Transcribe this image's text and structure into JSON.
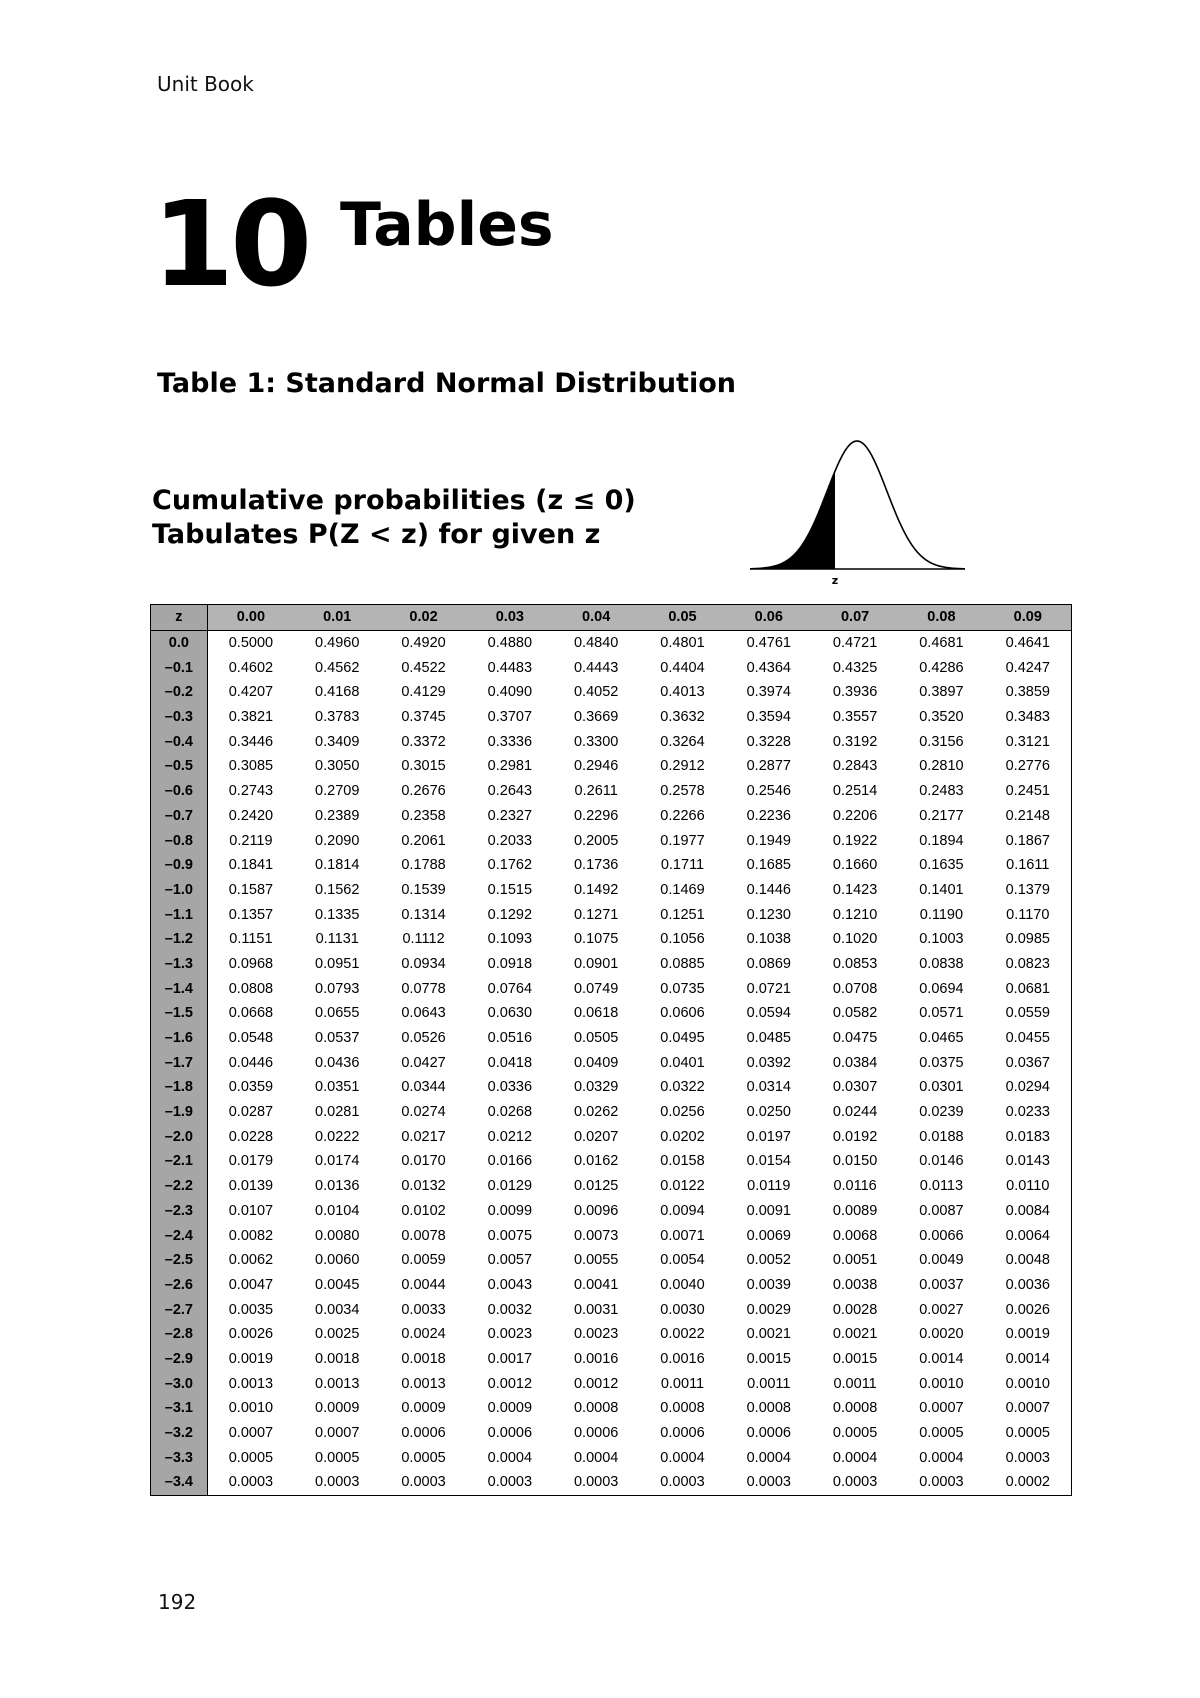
{
  "header": {
    "running_title": "Unit Book"
  },
  "chapter": {
    "number": "10",
    "title": "Tables"
  },
  "table_heading": "Table 1: Standard Normal Distribution",
  "subheading": {
    "line1": "Cumulative probabilities (z ≤ 0)",
    "line2": "Tabulates P(Z < z) for given z"
  },
  "curve": {
    "label": "z"
  },
  "table": {
    "z_header": "z",
    "columns": [
      "0.00",
      "0.01",
      "0.02",
      "0.03",
      "0.04",
      "0.05",
      "0.06",
      "0.07",
      "0.08",
      "0.09"
    ],
    "rows": [
      {
        "z": "0.0",
        "values": [
          "0.5000",
          "0.4960",
          "0.4920",
          "0.4880",
          "0.4840",
          "0.4801",
          "0.4761",
          "0.4721",
          "0.4681",
          "0.4641"
        ]
      },
      {
        "z": "–0.1",
        "values": [
          "0.4602",
          "0.4562",
          "0.4522",
          "0.4483",
          "0.4443",
          "0.4404",
          "0.4364",
          "0.4325",
          "0.4286",
          "0.4247"
        ]
      },
      {
        "z": "–0.2",
        "values": [
          "0.4207",
          "0.4168",
          "0.4129",
          "0.4090",
          "0.4052",
          "0.4013",
          "0.3974",
          "0.3936",
          "0.3897",
          "0.3859"
        ]
      },
      {
        "z": "–0.3",
        "values": [
          "0.3821",
          "0.3783",
          "0.3745",
          "0.3707",
          "0.3669",
          "0.3632",
          "0.3594",
          "0.3557",
          "0.3520",
          "0.3483"
        ]
      },
      {
        "z": "–0.4",
        "values": [
          "0.3446",
          "0.3409",
          "0.3372",
          "0.3336",
          "0.3300",
          "0.3264",
          "0.3228",
          "0.3192",
          "0.3156",
          "0.3121"
        ]
      },
      {
        "z": "–0.5",
        "values": [
          "0.3085",
          "0.3050",
          "0.3015",
          "0.2981",
          "0.2946",
          "0.2912",
          "0.2877",
          "0.2843",
          "0.2810",
          "0.2776"
        ]
      },
      {
        "z": "–0.6",
        "values": [
          "0.2743",
          "0.2709",
          "0.2676",
          "0.2643",
          "0.2611",
          "0.2578",
          "0.2546",
          "0.2514",
          "0.2483",
          "0.2451"
        ]
      },
      {
        "z": "–0.7",
        "values": [
          "0.2420",
          "0.2389",
          "0.2358",
          "0.2327",
          "0.2296",
          "0.2266",
          "0.2236",
          "0.2206",
          "0.2177",
          "0.2148"
        ]
      },
      {
        "z": "–0.8",
        "values": [
          "0.2119",
          "0.2090",
          "0.2061",
          "0.2033",
          "0.2005",
          "0.1977",
          "0.1949",
          "0.1922",
          "0.1894",
          "0.1867"
        ]
      },
      {
        "z": "–0.9",
        "values": [
          "0.1841",
          "0.1814",
          "0.1788",
          "0.1762",
          "0.1736",
          "0.1711",
          "0.1685",
          "0.1660",
          "0.1635",
          "0.1611"
        ]
      },
      {
        "z": "–1.0",
        "values": [
          "0.1587",
          "0.1562",
          "0.1539",
          "0.1515",
          "0.1492",
          "0.1469",
          "0.1446",
          "0.1423",
          "0.1401",
          "0.1379"
        ]
      },
      {
        "z": "–1.1",
        "values": [
          "0.1357",
          "0.1335",
          "0.1314",
          "0.1292",
          "0.1271",
          "0.1251",
          "0.1230",
          "0.1210",
          "0.1190",
          "0.1170"
        ]
      },
      {
        "z": "–1.2",
        "values": [
          "0.1151",
          "0.1131",
          "0.1112",
          "0.1093",
          "0.1075",
          "0.1056",
          "0.1038",
          "0.1020",
          "0.1003",
          "0.0985"
        ]
      },
      {
        "z": "–1.3",
        "values": [
          "0.0968",
          "0.0951",
          "0.0934",
          "0.0918",
          "0.0901",
          "0.0885",
          "0.0869",
          "0.0853",
          "0.0838",
          "0.0823"
        ]
      },
      {
        "z": "–1.4",
        "values": [
          "0.0808",
          "0.0793",
          "0.0778",
          "0.0764",
          "0.0749",
          "0.0735",
          "0.0721",
          "0.0708",
          "0.0694",
          "0.0681"
        ]
      },
      {
        "z": "–1.5",
        "values": [
          "0.0668",
          "0.0655",
          "0.0643",
          "0.0630",
          "0.0618",
          "0.0606",
          "0.0594",
          "0.0582",
          "0.0571",
          "0.0559"
        ]
      },
      {
        "z": "–1.6",
        "values": [
          "0.0548",
          "0.0537",
          "0.0526",
          "0.0516",
          "0.0505",
          "0.0495",
          "0.0485",
          "0.0475",
          "0.0465",
          "0.0455"
        ]
      },
      {
        "z": "–1.7",
        "values": [
          "0.0446",
          "0.0436",
          "0.0427",
          "0.0418",
          "0.0409",
          "0.0401",
          "0.0392",
          "0.0384",
          "0.0375",
          "0.0367"
        ]
      },
      {
        "z": "–1.8",
        "values": [
          "0.0359",
          "0.0351",
          "0.0344",
          "0.0336",
          "0.0329",
          "0.0322",
          "0.0314",
          "0.0307",
          "0.0301",
          "0.0294"
        ]
      },
      {
        "z": "–1.9",
        "values": [
          "0.0287",
          "0.0281",
          "0.0274",
          "0.0268",
          "0.0262",
          "0.0256",
          "0.0250",
          "0.0244",
          "0.0239",
          "0.0233"
        ]
      },
      {
        "z": "–2.0",
        "values": [
          "0.0228",
          "0.0222",
          "0.0217",
          "0.0212",
          "0.0207",
          "0.0202",
          "0.0197",
          "0.0192",
          "0.0188",
          "0.0183"
        ]
      },
      {
        "z": "–2.1",
        "values": [
          "0.0179",
          "0.0174",
          "0.0170",
          "0.0166",
          "0.0162",
          "0.0158",
          "0.0154",
          "0.0150",
          "0.0146",
          "0.0143"
        ]
      },
      {
        "z": "–2.2",
        "values": [
          "0.0139",
          "0.0136",
          "0.0132",
          "0.0129",
          "0.0125",
          "0.0122",
          "0.0119",
          "0.0116",
          "0.0113",
          "0.0110"
        ]
      },
      {
        "z": "–2.3",
        "values": [
          "0.0107",
          "0.0104",
          "0.0102",
          "0.0099",
          "0.0096",
          "0.0094",
          "0.0091",
          "0.0089",
          "0.0087",
          "0.0084"
        ]
      },
      {
        "z": "–2.4",
        "values": [
          "0.0082",
          "0.0080",
          "0.0078",
          "0.0075",
          "0.0073",
          "0.0071",
          "0.0069",
          "0.0068",
          "0.0066",
          "0.0064"
        ]
      },
      {
        "z": "–2.5",
        "values": [
          "0.0062",
          "0.0060",
          "0.0059",
          "0.0057",
          "0.0055",
          "0.0054",
          "0.0052",
          "0.0051",
          "0.0049",
          "0.0048"
        ]
      },
      {
        "z": "–2.6",
        "values": [
          "0.0047",
          "0.0045",
          "0.0044",
          "0.0043",
          "0.0041",
          "0.0040",
          "0.0039",
          "0.0038",
          "0.0037",
          "0.0036"
        ]
      },
      {
        "z": "–2.7",
        "values": [
          "0.0035",
          "0.0034",
          "0.0033",
          "0.0032",
          "0.0031",
          "0.0030",
          "0.0029",
          "0.0028",
          "0.0027",
          "0.0026"
        ]
      },
      {
        "z": "–2.8",
        "values": [
          "0.0026",
          "0.0025",
          "0.0024",
          "0.0023",
          "0.0023",
          "0.0022",
          "0.0021",
          "0.0021",
          "0.0020",
          "0.0019"
        ]
      },
      {
        "z": "–2.9",
        "values": [
          "0.0019",
          "0.0018",
          "0.0018",
          "0.0017",
          "0.0016",
          "0.0016",
          "0.0015",
          "0.0015",
          "0.0014",
          "0.0014"
        ]
      },
      {
        "z": "–3.0",
        "values": [
          "0.0013",
          "0.0013",
          "0.0013",
          "0.0012",
          "0.0012",
          "0.0011",
          "0.0011",
          "0.0011",
          "0.0010",
          "0.0010"
        ]
      },
      {
        "z": "–3.1",
        "values": [
          "0.0010",
          "0.0009",
          "0.0009",
          "0.0009",
          "0.0008",
          "0.0008",
          "0.0008",
          "0.0008",
          "0.0007",
          "0.0007"
        ]
      },
      {
        "z": "–3.2",
        "values": [
          "0.0007",
          "0.0007",
          "0.0006",
          "0.0006",
          "0.0006",
          "0.0006",
          "0.0006",
          "0.0005",
          "0.0005",
          "0.0005"
        ]
      },
      {
        "z": "–3.3",
        "values": [
          "0.0005",
          "0.0005",
          "0.0005",
          "0.0004",
          "0.0004",
          "0.0004",
          "0.0004",
          "0.0004",
          "0.0004",
          "0.0003"
        ]
      },
      {
        "z": "–3.4",
        "values": [
          "0.0003",
          "0.0003",
          "0.0003",
          "0.0003",
          "0.0003",
          "0.0003",
          "0.0003",
          "0.0003",
          "0.0003",
          "0.0002"
        ]
      }
    ]
  },
  "page_number": "192"
}
